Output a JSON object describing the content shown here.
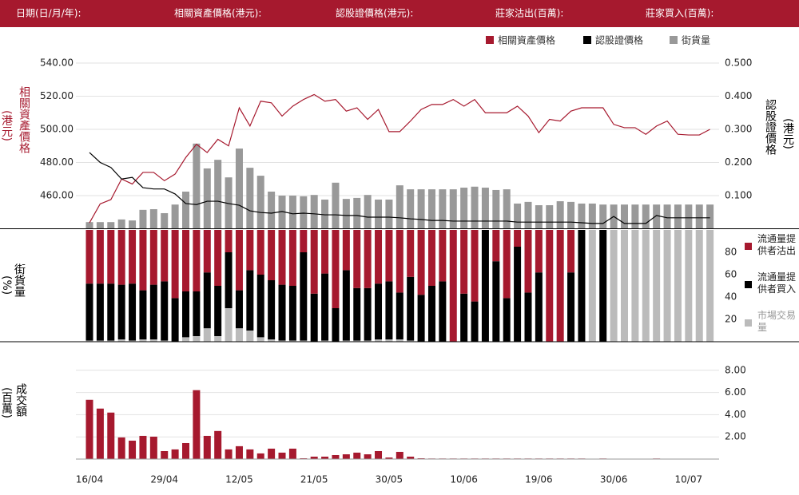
{
  "header": {
    "labels": [
      "日期(日/月/年):",
      "相關資產價格(港元):",
      "認股證價格(港元):",
      "莊家沽出(百萬):",
      "莊家買入(百萬):"
    ]
  },
  "chart_data": [
    {
      "type": "combo",
      "y_label": "相關資產價格",
      "y_label_unit": "(港元)",
      "y2_label": "認股證價格",
      "y2_label_unit": "(港元)",
      "ylim": [
        440,
        540
      ],
      "yticks": [
        {
          "value": 460,
          "label": "460.00"
        },
        {
          "value": 480,
          "label": "480.00"
        },
        {
          "value": 500,
          "label": "500.00"
        },
        {
          "value": 520,
          "label": "520.00"
        },
        {
          "value": 540,
          "label": "540.00"
        }
      ],
      "y2lim": [
        0,
        0.5
      ],
      "y2ticks": [
        {
          "value": 0.1,
          "label": "0.100"
        },
        {
          "value": 0.2,
          "label": "0.200"
        },
        {
          "value": 0.3,
          "label": "0.300"
        },
        {
          "value": 0.4,
          "label": "0.400"
        },
        {
          "value": 0.5,
          "label": "0.500"
        }
      ],
      "grid": true,
      "series": [
        {
          "name": "相關資產價格",
          "color": "#a6192e",
          "mark": "line",
          "values": [
            443.6,
            455,
            457.6,
            470,
            467,
            474,
            474,
            469,
            473,
            483,
            491,
            486,
            494,
            490,
            513,
            502,
            517,
            516,
            508,
            514,
            518,
            521,
            517,
            518,
            511,
            513,
            506,
            512,
            498.6,
            498.6,
            505,
            512,
            515,
            515,
            518,
            514,
            518,
            510,
            510,
            510,
            514,
            508,
            498,
            506,
            505,
            511,
            513,
            513,
            513,
            503,
            501,
            501,
            497,
            502,
            505,
            497,
            496.6,
            496.6,
            500
          ]
        },
        {
          "name": "認股證價格",
          "color": "#000000",
          "mark": "line",
          "axis": "y2",
          "values": [
            0.23,
            0.2,
            0.185,
            0.15,
            0.155,
            0.124,
            0.12,
            0.12,
            0.105,
            0.076,
            0.073,
            0.083,
            0.083,
            0.076,
            0.071,
            0.054,
            0.049,
            0.047,
            0.052,
            0.045,
            0.047,
            0.045,
            0.042,
            0.042,
            0.04,
            0.04,
            0.035,
            0.035,
            0.035,
            0.033,
            0.03,
            0.028,
            0.025,
            0.025,
            0.023,
            0.023,
            0.023,
            0.023,
            0.023,
            0.023,
            0.02,
            0.02,
            0.02,
            0.02,
            0.02,
            0.02,
            0.018,
            0.016,
            0.016,
            0.037,
            0.016,
            0.016,
            0.016,
            0.04,
            0.033,
            0.033,
            0.033,
            0.033,
            0.033
          ]
        },
        {
          "name": "街貨量",
          "color": "#999999",
          "mark": "bar",
          "axis": "y2",
          "values": [
            0.02,
            0.02,
            0.02,
            0.028,
            0.025,
            0.057,
            0.059,
            0.047,
            0.073,
            0.112,
            0.257,
            0.182,
            0.208,
            0.155,
            0.242,
            0.184,
            0.16,
            0.112,
            0.1,
            0.1,
            0.098,
            0.102,
            0.088,
            0.139,
            0.09,
            0.093,
            0.102,
            0.088,
            0.088,
            0.131,
            0.119,
            0.119,
            0.119,
            0.119,
            0.119,
            0.124,
            0.127,
            0.124,
            0.117,
            0.119,
            0.076,
            0.081,
            0.071,
            0.071,
            0.083,
            0.081,
            0.076,
            0.076,
            0.073,
            0.073,
            0.073,
            0.073,
            0.073,
            0.073,
            0.073,
            0.073,
            0.073,
            0.073,
            0.073
          ]
        }
      ]
    },
    {
      "type": "stacked-bar",
      "y_label": "街貨量",
      "y_label_unit": "(%)",
      "ylim": [
        0,
        100
      ],
      "yticks": [
        20,
        40,
        60,
        80
      ],
      "series": [
        {
          "name": "流通量提供者沽出",
          "color": "#a6192e",
          "values": [
            48,
            48,
            48,
            49,
            48,
            54,
            49,
            46,
            61,
            55,
            55,
            38,
            50,
            20,
            54,
            36,
            40,
            45,
            49,
            50,
            20,
            57,
            39,
            70,
            36,
            52,
            52,
            48,
            46,
            56,
            42,
            58,
            50,
            46,
            100,
            57,
            64,
            0,
            28,
            61,
            15,
            56,
            38,
            100,
            100,
            38,
            0,
            0,
            0,
            0,
            0,
            0,
            0,
            0,
            0,
            0,
            0,
            0,
            0
          ]
        },
        {
          "name": "流通量提供者買入",
          "color": "#000000",
          "values": [
            51,
            51,
            51,
            49,
            51,
            44,
            49,
            53,
            39,
            41,
            40,
            50,
            45,
            50,
            34,
            54,
            56,
            53,
            50,
            49,
            79,
            43,
            60,
            30,
            63,
            47,
            47,
            50,
            52,
            42,
            57,
            42,
            50,
            54,
            0,
            43,
            36,
            100,
            72,
            39,
            85,
            44,
            62,
            0,
            0,
            62,
            100,
            0,
            100,
            0,
            0,
            0,
            0,
            0,
            0,
            0,
            0,
            0,
            0
          ]
        },
        {
          "name": "市場交易量",
          "color": "#bbbbbb",
          "values": [
            1,
            1,
            1,
            2,
            1,
            2,
            2,
            1,
            0,
            4,
            5,
            12,
            5,
            30,
            12,
            10,
            4,
            2,
            1,
            1,
            1,
            0,
            1,
            0,
            1,
            1,
            1,
            2,
            2,
            2,
            1,
            0,
            0,
            0,
            0,
            0,
            0,
            0,
            0,
            0,
            0,
            0,
            0,
            0,
            0,
            0,
            0,
            100,
            0,
            100,
            100,
            100,
            100,
            100,
            100,
            100,
            100,
            100,
            100
          ]
        }
      ]
    },
    {
      "type": "bar",
      "y_label": "成交額",
      "y_label_unit": "(百萬)",
      "ylim": [
        0,
        10
      ],
      "grid": true,
      "color": "#a6192e",
      "yticks": [
        {
          "value": 2,
          "label": "2.00"
        },
        {
          "value": 4,
          "label": "4.00"
        },
        {
          "value": 6,
          "label": "6.00"
        },
        {
          "value": 8,
          "label": "8.00"
        }
      ],
      "categories": [
        "16/04",
        null,
        null,
        null,
        null,
        null,
        null,
        "29/04",
        null,
        null,
        null,
        null,
        null,
        null,
        "12/05",
        null,
        null,
        null,
        null,
        null,
        null,
        "21/05",
        null,
        null,
        null,
        null,
        null,
        null,
        "30/05",
        null,
        null,
        null,
        null,
        null,
        null,
        "10/06",
        null,
        null,
        null,
        null,
        null,
        null,
        "19/06",
        null,
        null,
        null,
        null,
        null,
        null,
        "30/06",
        null,
        null,
        null,
        null,
        null,
        null,
        "10/07",
        null,
        null
      ],
      "values": [
        5.34,
        4.55,
        4.19,
        1.95,
        1.66,
        2.09,
        2.02,
        0.72,
        0.87,
        1.44,
        6.21,
        2.09,
        2.53,
        0.87,
        1.16,
        0.87,
        0.51,
        0.94,
        0.58,
        0.94,
        0.07,
        0.22,
        0.22,
        0.36,
        0.43,
        0.58,
        0.43,
        0.72,
        0.14,
        0.65,
        0.22,
        0.07,
        0.05,
        0.05,
        0.05,
        0.05,
        0.05,
        0.05,
        0.05,
        0.05,
        0.05,
        0.05,
        0.05,
        0.05,
        0.05,
        0.05,
        0.05,
        0,
        0.05,
        0,
        0,
        0,
        0,
        0.05,
        0,
        0,
        0,
        0,
        0
      ]
    }
  ]
}
